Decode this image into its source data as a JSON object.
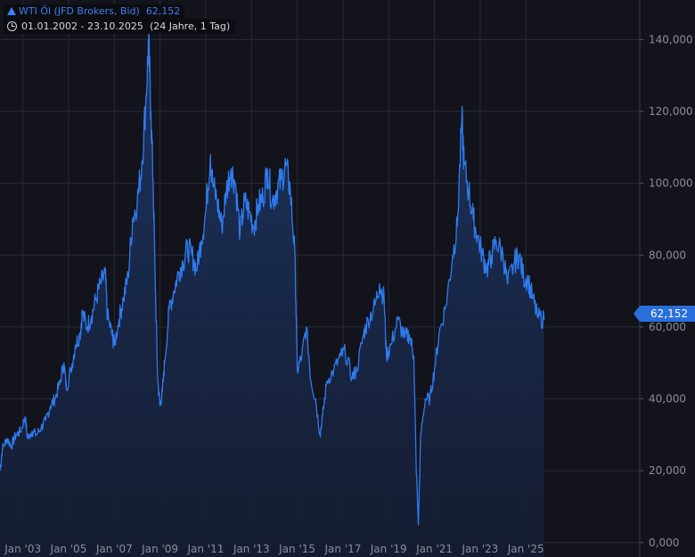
{
  "legend": {
    "title": "WTI Öl (JFD Brokers, Bid)",
    "last_value": "62,152",
    "date_range": "01.01.2002 - 23.10.2025",
    "period": "(24 Jahre, 1 Tag)"
  },
  "colors": {
    "background": "#12131b",
    "grid": "#2a2c37",
    "line": "#2f7bef",
    "area_top": "#1c3563",
    "axis_text": "#8b8e99",
    "badge": "#2a6fdc"
  },
  "chart_data": {
    "type": "area",
    "title": "WTI Öl (JFD Brokers, Bid)",
    "xlabel": "",
    "ylabel": "",
    "x_ticks": [
      "Jan '03",
      "Jan '05",
      "Jan '07",
      "Jan '09",
      "Jan '11",
      "Jan '13",
      "Jan '15",
      "Jan '17",
      "Jan '19",
      "Jan '21",
      "Jan '23",
      "Jan '25"
    ],
    "y_ticks": [
      "0,000",
      "20,000",
      "40,000",
      "60,000",
      "80,000",
      "100,000",
      "120,000",
      "140,000"
    ],
    "ylim": [
      -4,
      151
    ],
    "grid": true,
    "last_value": 62.152,
    "series": [
      {
        "x": [
          2002.0,
          2002.1,
          2002.3,
          2002.5,
          2002.7,
          2002.9,
          2003.1,
          2003.2,
          2003.4,
          2003.6,
          2003.8,
          2004.0,
          2004.2,
          2004.4,
          2004.6,
          2004.8,
          2004.9,
          2005.1,
          2005.3,
          2005.5,
          2005.6,
          2005.8,
          2006.0,
          2006.2,
          2006.4,
          2006.6,
          2006.7,
          2006.9,
          2007.0,
          2007.2,
          2007.4,
          2007.6,
          2007.8,
          2008.0,
          2008.2,
          2008.4,
          2008.5,
          2008.6,
          2008.7,
          2008.8,
          2008.9,
          2009.0,
          2009.1,
          2009.2,
          2009.4,
          2009.6,
          2009.8,
          2010.0,
          2010.2,
          2010.4,
          2010.6,
          2010.8,
          2011.0,
          2011.2,
          2011.3,
          2011.5,
          2011.7,
          2011.9,
          2012.1,
          2012.3,
          2012.5,
          2012.7,
          2012.9,
          2013.1,
          2013.3,
          2013.5,
          2013.7,
          2013.9,
          2014.1,
          2014.3,
          2014.5,
          2014.7,
          2014.9,
          2015.0,
          2015.2,
          2015.4,
          2015.6,
          2015.8,
          2016.0,
          2016.1,
          2016.3,
          2016.6,
          2016.9,
          2017.1,
          2017.4,
          2017.6,
          2017.9,
          2018.1,
          2018.4,
          2018.6,
          2018.8,
          2018.9,
          2019.1,
          2019.4,
          2019.7,
          2019.9,
          2020.1,
          2020.2,
          2020.3,
          2020.4,
          2020.6,
          2020.8,
          2021.0,
          2021.2,
          2021.5,
          2021.8,
          2022.0,
          2022.2,
          2022.3,
          2022.5,
          2022.7,
          2022.9,
          2023.1,
          2023.3,
          2023.5,
          2023.7,
          2024.0,
          2024.2,
          2024.5,
          2024.7,
          2024.9,
          2025.1,
          2025.3,
          2025.5,
          2025.8
        ],
        "values": [
          20,
          26,
          29,
          27,
          30,
          31,
          35,
          29,
          31,
          30,
          32,
          34,
          38,
          40,
          44,
          50,
          43,
          48,
          55,
          58,
          64,
          60,
          63,
          68,
          72,
          75,
          63,
          58,
          55,
          62,
          68,
          74,
          90,
          95,
          105,
          125,
          140,
          120,
          100,
          70,
          45,
          38,
          42,
          50,
          65,
          70,
          75,
          78,
          82,
          80,
          76,
          84,
          92,
          108,
          100,
          95,
          88,
          98,
          104,
          100,
          86,
          95,
          92,
          88,
          94,
          96,
          104,
          95,
          98,
          101,
          105,
          98,
          80,
          48,
          52,
          60,
          45,
          40,
          30,
          35,
          45,
          48,
          52,
          53,
          46,
          48,
          58,
          62,
          66,
          72,
          68,
          52,
          55,
          62,
          57,
          58,
          52,
          22,
          5,
          30,
          40,
          40,
          48,
          58,
          66,
          80,
          88,
          118,
          105,
          98,
          90,
          85,
          80,
          76,
          80,
          84,
          80,
          72,
          78,
          80,
          74,
          73,
          68,
          63,
          62
        ]
      }
    ]
  }
}
